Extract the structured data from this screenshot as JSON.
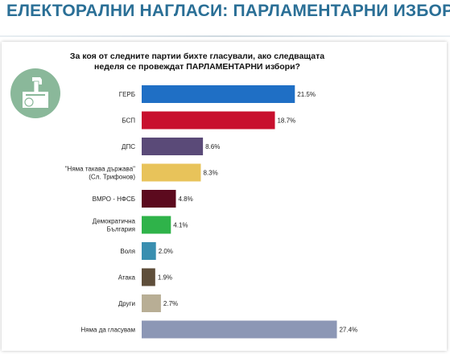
{
  "page": {
    "title": "ЕЛЕКТОРАЛНИ НАГЛАСИ: ПАРЛАМЕНТАРНИ ИЗБОРИ",
    "logo_icon": "ballot-box-icon",
    "logo_color": "#8ab89a"
  },
  "chart_data": {
    "type": "bar",
    "orientation": "horizontal",
    "title": "За коя от следните партии бихте гласували, ако следващата неделя се провеждат ПАРЛАМЕНТАРНИ избори?",
    "categories": [
      [
        "ГЕРБ"
      ],
      [
        "БСП"
      ],
      [
        "ДПС"
      ],
      [
        "\"Няма такава държава\"",
        "(Сл. Трифонов)"
      ],
      [
        "ВМРО - НФСБ"
      ],
      [
        "Демократична",
        "България"
      ],
      [
        "Воля"
      ],
      [
        "Атака"
      ],
      [
        "Други"
      ],
      [
        "Няма да гласувам"
      ]
    ],
    "values": [
      21.5,
      18.7,
      8.6,
      8.3,
      4.8,
      4.1,
      2.0,
      1.9,
      2.7,
      27.4
    ],
    "value_labels": [
      "21.5%",
      "18.7%",
      "8.6%",
      "8.3%",
      "4.8%",
      "4.1%",
      "2.0%",
      "1.9%",
      "2.7%",
      "27.4%"
    ],
    "colors": [
      "#1f6fc5",
      "#c8102e",
      "#5a4a78",
      "#e8c35a",
      "#5c0a1e",
      "#2fb34a",
      "#3a8fb0",
      "#5e4e3a",
      "#b8ae95",
      "#8c97b5"
    ],
    "unit": "%",
    "grid": false,
    "legend": "none"
  }
}
